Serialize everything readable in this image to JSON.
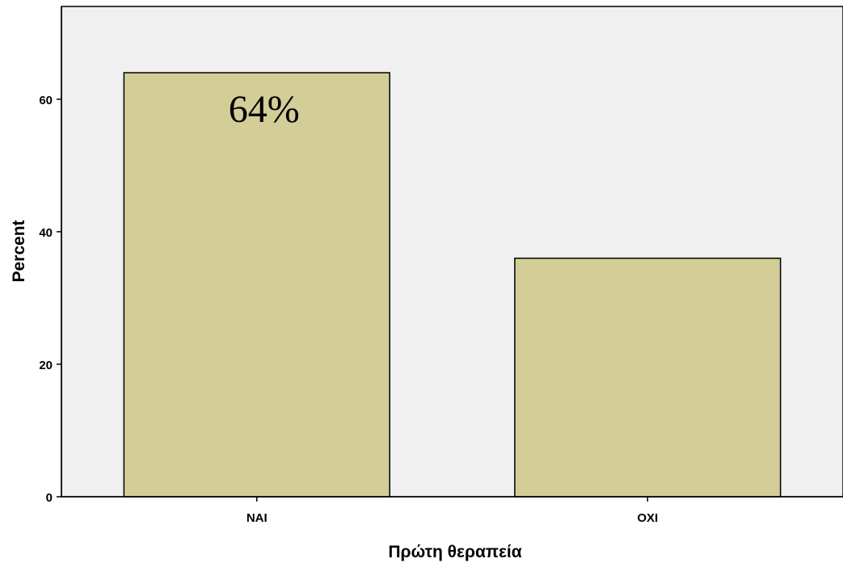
{
  "chart_data": {
    "type": "bar",
    "categories": [
      "ΝΑΙ",
      "ΟΧΙ"
    ],
    "values": [
      64,
      36
    ],
    "data_labels": [
      "64%",
      ""
    ],
    "xlabel": "Πρώτη θεραπεία",
    "ylabel": "Percent",
    "ylim": [
      0,
      74
    ],
    "yticks": [
      0,
      20,
      40,
      60
    ],
    "grid": false,
    "colors": {
      "plot_background": "#f0f0f0",
      "bar_fill": "#d3cd98",
      "bar_stroke": "#000000"
    }
  }
}
